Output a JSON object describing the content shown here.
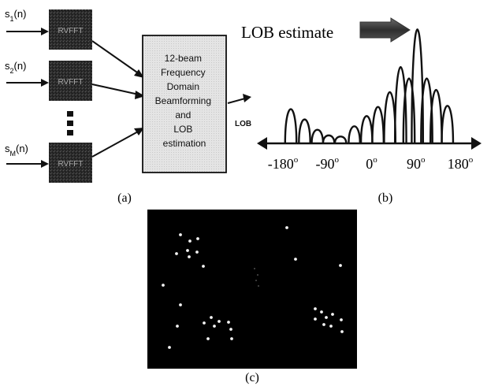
{
  "panel_a": {
    "inputs": [
      {
        "base": "s",
        "sub": "1",
        "arg": "(n)"
      },
      {
        "base": "s",
        "sub": "2",
        "arg": "(n)"
      },
      {
        "base": "s",
        "sub": "M",
        "arg": "(n)"
      }
    ],
    "block_label": "RVFFT",
    "processor_lines": [
      "12-beam",
      "Frequency",
      "Domain",
      "Beamforming",
      "and",
      "LOB",
      "estimation"
    ],
    "output_label": "LOB",
    "caption": "(a)"
  },
  "panel_b": {
    "title": "LOB estimate",
    "axis_ticks": [
      "-180",
      "-90",
      "0",
      "90",
      "180"
    ],
    "degree_symbol": "o",
    "caption": "(b)",
    "chart_data": {
      "type": "line",
      "xlim": [
        -180,
        180
      ],
      "lobe_peaks": [
        {
          "x": -164,
          "y": 0.3
        },
        {
          "x": -136,
          "y": 0.21
        },
        {
          "x": -110,
          "y": 0.12
        },
        {
          "x": -87,
          "y": 0.07
        },
        {
          "x": -63,
          "y": 0.06
        },
        {
          "x": -35,
          "y": 0.15
        },
        {
          "x": -10,
          "y": 0.24
        },
        {
          "x": 13,
          "y": 0.32
        },
        {
          "x": 37,
          "y": 0.45
        },
        {
          "x": 59,
          "y": 0.67
        },
        {
          "x": 76,
          "y": 0.57
        },
        {
          "x": 93,
          "y": 1.0
        },
        {
          "x": 112,
          "y": 0.57
        },
        {
          "x": 131,
          "y": 0.47
        },
        {
          "x": 154,
          "y": 0.33
        }
      ]
    }
  },
  "panel_c": {
    "caption": "(c)",
    "background": "#000000",
    "dot_color": "#f2f2f2"
  },
  "colors": {
    "dark_block": "#2b2b2b",
    "processor_fill": "#e4e4e4",
    "arrow_fill": "#3c3c3c"
  }
}
